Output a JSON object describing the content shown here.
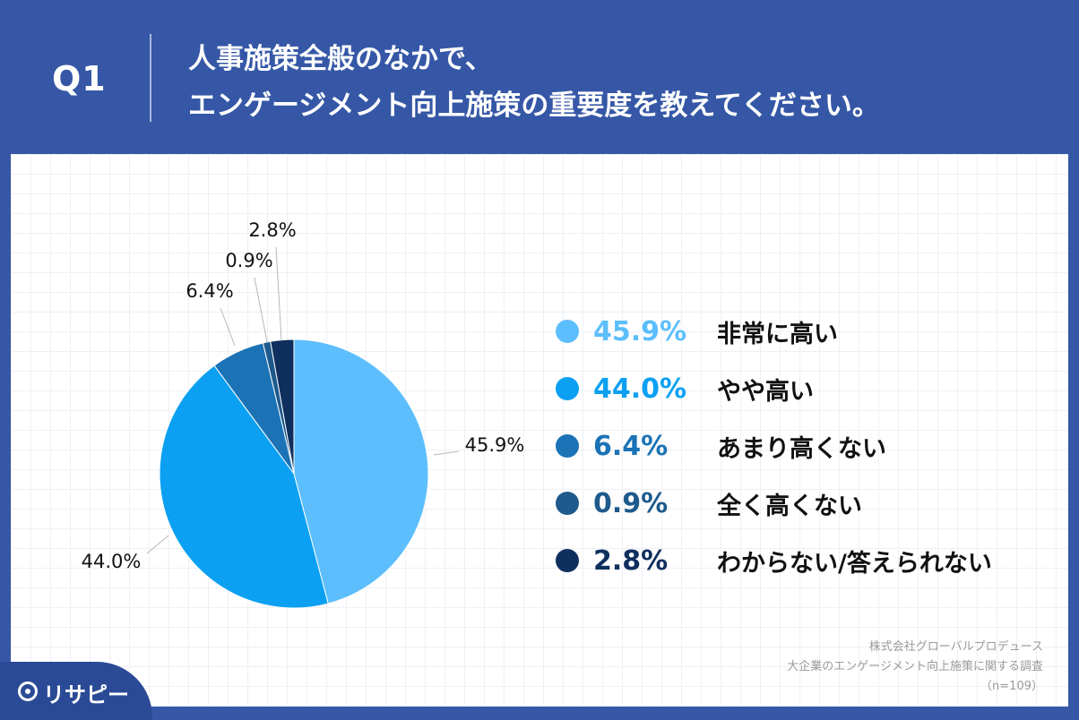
{
  "header": {
    "q_label": "Q1",
    "title_line1": "人事施策全般のなかで、",
    "title_line2": "エンゲージメント向上施策の重要度を教えてください。"
  },
  "colors": {
    "background": "#3557a6",
    "panel": "#ffffff"
  },
  "chart_data": {
    "type": "pie",
    "start_angle_deg": 0,
    "direction": "clockwise",
    "slices": [
      {
        "label": "非常に高い",
        "value": 45.9,
        "display": "45.9%",
        "color": "#5cbefc"
      },
      {
        "label": "やや高い",
        "value": 44.0,
        "display": "44.0%",
        "color": "#0ba0f2"
      },
      {
        "label": "あまり高くない",
        "value": 6.4,
        "display": "6.4%",
        "color": "#1b73b6"
      },
      {
        "label": "全く高くない",
        "value": 0.9,
        "display": "0.9%",
        "color": "#1e5a8c"
      },
      {
        "label": "わからない/答えられない",
        "value": 2.8,
        "display": "2.8%",
        "color": "#0f2f5e"
      }
    ],
    "legend_position": "right"
  },
  "source": {
    "line1": "株式会社グローバルプロデュース",
    "line2": "大企業のエンゲージメント向上施策に関する調査",
    "line3": "（n=109）"
  },
  "logo": {
    "text": "リサピー"
  }
}
